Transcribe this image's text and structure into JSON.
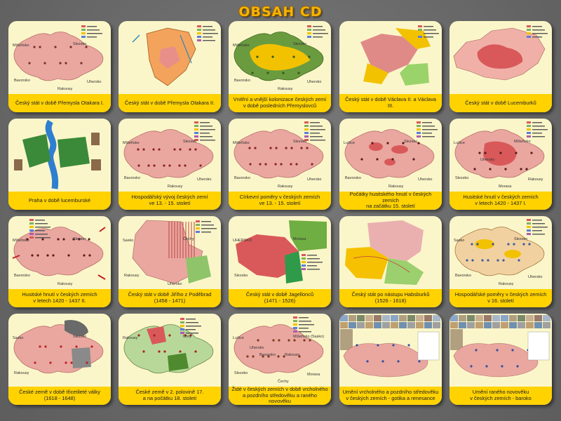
{
  "header": {
    "title": "OBSAH CD"
  },
  "colors": {
    "background": "#6f6f6f",
    "card": "#fbf6c9",
    "caption": "#ffd200",
    "title": "#f5b400",
    "territory_pink": "#e9a7a0",
    "territory_red": "#d9595a",
    "territory_green": "#7fb25a",
    "territory_yellow": "#f2c200"
  },
  "cards": [
    {
      "id": 1,
      "caption": "Český stát v době Přemysla Otakara I.",
      "map_style": "pink-otakar1",
      "labels": [
        "Míšeňsko",
        "Slezsko",
        "Bavorsko",
        "Rakousy",
        "Uhersko"
      ]
    },
    {
      "id": 2,
      "caption": "Český stát v době Přemysla Otakara II.",
      "map_style": "otakar2",
      "labels": []
    },
    {
      "id": 3,
      "caption": "Vnitřní a vnější kolonizace českých zemí\nv době posledních Přemyslovců",
      "map_style": "colonization",
      "labels": [
        "Míšeňsko",
        "Slezsko",
        "Bavorsko",
        "Rakousy",
        "Uhersko"
      ]
    },
    {
      "id": 4,
      "caption": "Český stát v době Václava II. a Václava III.",
      "map_style": "vaclav",
      "labels": []
    },
    {
      "id": 5,
      "caption": "Český stát v době Lucemburků",
      "map_style": "lucemburk",
      "labels": []
    },
    {
      "id": 6,
      "caption": "Praha v době lucemburské",
      "map_style": "praha",
      "labels": []
    },
    {
      "id": 7,
      "caption": "Hospodářský vývoj českých zemí\nve 13. - 15. století",
      "map_style": "economy",
      "labels": [
        "Míšeňsko",
        "Slezsko",
        "Bavorsko",
        "Rakousy",
        "Uhersko"
      ]
    },
    {
      "id": 8,
      "caption": "Církevní poměry v českých zemích\nve 13. - 15. století",
      "map_style": "church",
      "labels": [
        "Míšeňsko",
        "Slezsko",
        "Bavorsko",
        "Rakousy",
        "Uhersko"
      ]
    },
    {
      "id": 9,
      "caption": "Počátky husitského hnutí v českých zemích\nna začátku 15. století",
      "map_style": "hussite-start",
      "labels": [
        "Lužice",
        "Slezsko",
        "Bavorsko",
        "Rakousy",
        "Uhersko"
      ]
    },
    {
      "id": 10,
      "caption": "Husitské hnutí v českých zemích\nv letech 1420 - 1437 I.",
      "map_style": "hussite-1",
      "labels": [
        "Lužice",
        "Míšeňsko",
        "Slezsko",
        "Morava",
        "Rakousy",
        "Uhersko"
      ]
    },
    {
      "id": 11,
      "caption": "Husitské hnutí v českých zemích\nv letech 1420 - 1437 II.",
      "map_style": "hussite-2",
      "labels": [
        "Míšeňsko",
        "Slezsko",
        "Bavorsko",
        "Rakousy"
      ]
    },
    {
      "id": 12,
      "caption": "Český stát v době Jiřího z Poděbrad\n(1458 - 1471)",
      "map_style": "podebrady",
      "labels": [
        "Sasko",
        "Čechy",
        "Rakousy",
        "Uhersko"
      ]
    },
    {
      "id": 13,
      "caption": "Český stát v době Jagellonců\n(1471 - 1526)",
      "map_style": "jagellon",
      "labels": [
        "UHERSKO",
        "Morava",
        "Slezsko"
      ]
    },
    {
      "id": 14,
      "caption": "Český stát po nástupu Habsburků\n(1526 - 1618)",
      "map_style": "habsburg",
      "labels": []
    },
    {
      "id": 15,
      "caption": "Hospodářské poměry v českých zemích\nv 16. století",
      "map_style": "economy16",
      "labels": [
        "Sasko",
        "Slezsko",
        "Bavorsko",
        "Rakousy",
        "Uhersko"
      ]
    },
    {
      "id": 16,
      "caption": "České země v době třicetileté války\n(1618 - 1648)",
      "map_style": "thirty-years",
      "labels": [
        "Sasko",
        "Slezsko",
        "Rakousy"
      ]
    },
    {
      "id": 17,
      "caption": "České země v 2. polovině 17.\na na počátku 18. století",
      "map_style": "17th",
      "labels": [
        "Rakousy",
        "Uhry"
      ]
    },
    {
      "id": 18,
      "caption": "Židé v českých zemích v době vrcholného\na pozdního středověku a raného novověku",
      "map_style": "jews",
      "labels": [
        "Lužice",
        "Míšeňsko (Sasko)",
        "Slezsko",
        "Čechy",
        "Morava",
        "Bavorsko",
        "Rakousy",
        "Uhersko"
      ]
    },
    {
      "id": 19,
      "caption": "Umění vrcholného a pozdního středověku\nv českých zemích - gotika a renesance",
      "map_style": "art-gothic",
      "labels": []
    },
    {
      "id": 20,
      "caption": "Umění raného novověku\nv českých zemích - baroko",
      "map_style": "art-baroque",
      "labels": []
    }
  ]
}
